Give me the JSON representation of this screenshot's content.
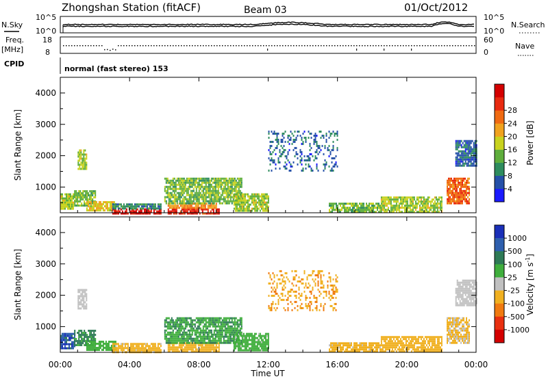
{
  "header": {
    "station": "Zhongshan Station (fitACF)",
    "beam": "Beam 03",
    "date": "01/Oct/2012"
  },
  "panels": {
    "nsky": {
      "label": "N.Sky",
      "tick_top": "10^5",
      "tick_bottom": "10^0"
    },
    "nsearch": {
      "label": "N.Search",
      "tick_top": "10^5",
      "tick_bottom": "10^0"
    },
    "freq": {
      "label_line1": "Freq.",
      "label_line2": "[MHz]",
      "tick_top": "18",
      "tick_bottom": "8"
    },
    "nave": {
      "label": "Nave",
      "tick_top": "60",
      "tick_bottom": "0"
    },
    "cpid": {
      "label": "CPID",
      "mode_text": "normal (fast stereo) 153"
    }
  },
  "chart_data": [
    {
      "type": "heatmap",
      "title": "",
      "xlabel": "Time UT",
      "ylabel": "Slant Range [km]",
      "xlim": [
        0,
        24
      ],
      "ylim": [
        180,
        4500
      ],
      "x_ticks": [
        "00:00",
        "04:00",
        "08:00",
        "12:00",
        "16:00",
        "20:00",
        "00:00"
      ],
      "y_ticks": [
        "1000",
        "2000",
        "3000",
        "4000"
      ],
      "colorbar": {
        "label": "Power [dB]",
        "ticks": [
          "4",
          "8",
          "12",
          "16",
          "20",
          "24",
          "28"
        ],
        "range": [
          0,
          30
        ],
        "colors": [
          "#1a1aff",
          "#2550a8",
          "#2e8c5e",
          "#5fae3c",
          "#c8d21e",
          "#f0a21e",
          "#f06a12",
          "#e82a10",
          "#d40000"
        ]
      },
      "echo_regions": [
        {
          "t0": 0.0,
          "t1": 0.8,
          "r0": 300,
          "r1": 800,
          "value": 14
        },
        {
          "t0": 0.8,
          "t1": 2.0,
          "r0": 400,
          "r1": 900,
          "value": 12
        },
        {
          "t0": 1.0,
          "t1": 1.5,
          "r0": 1600,
          "r1": 2200,
          "value": 14
        },
        {
          "t0": 1.5,
          "t1": 3.2,
          "r0": 250,
          "r1": 550,
          "value": 16
        },
        {
          "t0": 3.0,
          "t1": 5.8,
          "r0": 180,
          "r1": 320,
          "value": 28
        },
        {
          "t0": 3.0,
          "t1": 5.8,
          "r0": 320,
          "r1": 480,
          "value": 8
        },
        {
          "t0": 6.2,
          "t1": 9.2,
          "r0": 180,
          "r1": 320,
          "value": 26
        },
        {
          "t0": 6.2,
          "t1": 9.0,
          "r0": 320,
          "r1": 500,
          "value": 20
        },
        {
          "t0": 6.0,
          "t1": 10.5,
          "r0": 500,
          "r1": 1300,
          "value": 12
        },
        {
          "t0": 10.0,
          "t1": 12.0,
          "r0": 250,
          "r1": 800,
          "value": 14
        },
        {
          "t0": 12.0,
          "t1": 16.0,
          "r0": 1500,
          "r1": 2800,
          "value": 6
        },
        {
          "t0": 15.5,
          "t1": 18.5,
          "r0": 180,
          "r1": 500,
          "value": 12
        },
        {
          "t0": 18.5,
          "t1": 22.0,
          "r0": 200,
          "r1": 700,
          "value": 14
        },
        {
          "t0": 22.3,
          "t1": 23.6,
          "r0": 500,
          "r1": 1300,
          "value": 22
        },
        {
          "t0": 22.8,
          "t1": 24.0,
          "r0": 1700,
          "r1": 2500,
          "value": 6
        }
      ]
    },
    {
      "type": "heatmap",
      "title": "",
      "xlabel": "Time UT",
      "ylabel": "Slant Range [km]",
      "xlim": [
        0,
        24
      ],
      "ylim": [
        180,
        4500
      ],
      "x_ticks": [
        "00:00",
        "04:00",
        "08:00",
        "12:00",
        "16:00",
        "20:00",
        "00:00"
      ],
      "y_ticks": [
        "1000",
        "2000",
        "3000",
        "4000"
      ],
      "colorbar": {
        "label": "Velocity [m s^-1]",
        "ticks": [
          "1000",
          "500",
          "100",
          "25",
          "-25",
          "-100",
          "-500",
          "-1000"
        ],
        "range": [
          -1000,
          1000
        ],
        "colors": [
          "#1a2fb8",
          "#2e5fae",
          "#2e7a56",
          "#3fae3c",
          "#c0c0c0",
          "#f0b020",
          "#f07a10",
          "#e83010",
          "#d40000"
        ]
      },
      "echo_regions": [
        {
          "t0": 0.0,
          "t1": 0.8,
          "r0": 300,
          "r1": 800,
          "value": 700
        },
        {
          "t0": 0.8,
          "t1": 2.0,
          "r0": 400,
          "r1": 900,
          "value": 400
        },
        {
          "t0": 1.0,
          "t1": 1.5,
          "r0": 1600,
          "r1": 2200,
          "value": 20
        },
        {
          "t0": 1.5,
          "t1": 3.2,
          "r0": 250,
          "r1": 550,
          "value": 200
        },
        {
          "t0": 3.0,
          "t1": 5.8,
          "r0": 180,
          "r1": 480,
          "value": -150
        },
        {
          "t0": 6.2,
          "t1": 9.2,
          "r0": 180,
          "r1": 500,
          "value": -200
        },
        {
          "t0": 6.0,
          "t1": 10.5,
          "r0": 500,
          "r1": 1300,
          "value": 300
        },
        {
          "t0": 10.0,
          "t1": 12.0,
          "r0": 250,
          "r1": 800,
          "value": 150
        },
        {
          "t0": 12.0,
          "t1": 16.0,
          "r0": 1500,
          "r1": 2800,
          "value": -300
        },
        {
          "t0": 15.5,
          "t1": 18.5,
          "r0": 180,
          "r1": 500,
          "value": -150
        },
        {
          "t0": 18.5,
          "t1": 22.0,
          "r0": 200,
          "r1": 700,
          "value": -200
        },
        {
          "t0": 22.3,
          "t1": 23.6,
          "r0": 500,
          "r1": 1300,
          "value": -120
        },
        {
          "t0": 22.8,
          "t1": 24.0,
          "r0": 1700,
          "r1": 2500,
          "value": 10
        }
      ]
    }
  ]
}
